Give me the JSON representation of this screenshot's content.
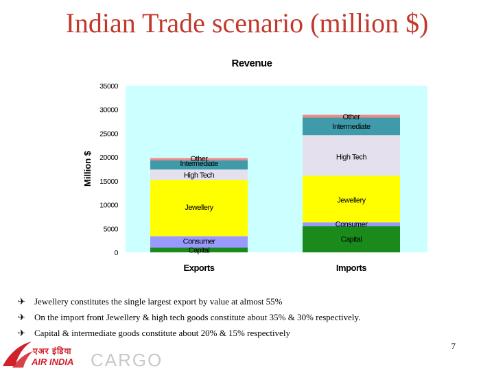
{
  "slide": {
    "title": "Indian Trade scenario (million $)",
    "page_number": "7",
    "bullets": [
      "Jewellery constitutes the single largest export by value at almost 55%",
      "On the import front Jewellery & high tech goods constitute about 35% & 30% respectively.",
      "Capital & intermediate goods constitute about 20% & 15% respectively"
    ],
    "bullet_icon": "airplane-icon",
    "logo": {
      "brand_text": "AIR INDIA",
      "script_text": "एअर इंडिया",
      "cargo_text": "CARGO",
      "brand_color": "#d0202a"
    }
  },
  "chart_data": {
    "type": "bar",
    "stacked": true,
    "title": "Revenue",
    "ylabel": "Million $",
    "xlabel": "",
    "ylim": [
      0,
      35000
    ],
    "yticks": [
      0,
      5000,
      10000,
      15000,
      20000,
      25000,
      30000,
      35000
    ],
    "categories": [
      "Exports",
      "Imports"
    ],
    "grid": false,
    "plot_background": "#ccffff",
    "series": [
      {
        "key": "capital",
        "color": "#1a8a1a",
        "values": [
          1000,
          5500
        ]
      },
      {
        "key": "consumer",
        "color": "#9999ff",
        "values": [
          2400,
          800
        ]
      },
      {
        "key": "jewellery",
        "color": "#ffff00",
        "values": [
          11800,
          9800
        ]
      },
      {
        "key": "hightech",
        "color": "#e4e0ee",
        "values": [
          2200,
          8500
        ]
      },
      {
        "key": "intermediate",
        "color": "#3f9aaa",
        "values": [
          1900,
          3700
        ]
      },
      {
        "key": "other",
        "color": "#f08a8a",
        "values": [
          500,
          600
        ]
      }
    ],
    "bar_labels": [
      {
        "category": 0,
        "text": "Consumer",
        "y": 2400
      },
      {
        "category": 0,
        "text": "Capital",
        "y": 500
      },
      {
        "category": 0,
        "text": "Jewellery",
        "y": 9500
      },
      {
        "category": 0,
        "text": "High Tech",
        "y": 16300
      },
      {
        "category": 0,
        "text": "Other",
        "y": 19700
      },
      {
        "category": 0,
        "text": "Intermediate",
        "y": 18700
      },
      {
        "category": 1,
        "text": "Capital",
        "y": 2800
      },
      {
        "category": 1,
        "text": "Consumer",
        "y": 6000
      },
      {
        "category": 1,
        "text": "Jewellery",
        "y": 11000
      },
      {
        "category": 1,
        "text": "High Tech",
        "y": 20100
      },
      {
        "category": 1,
        "text": "Other",
        "y": 28500
      },
      {
        "category": 1,
        "text": "Intermediate",
        "y": 26500
      }
    ]
  }
}
